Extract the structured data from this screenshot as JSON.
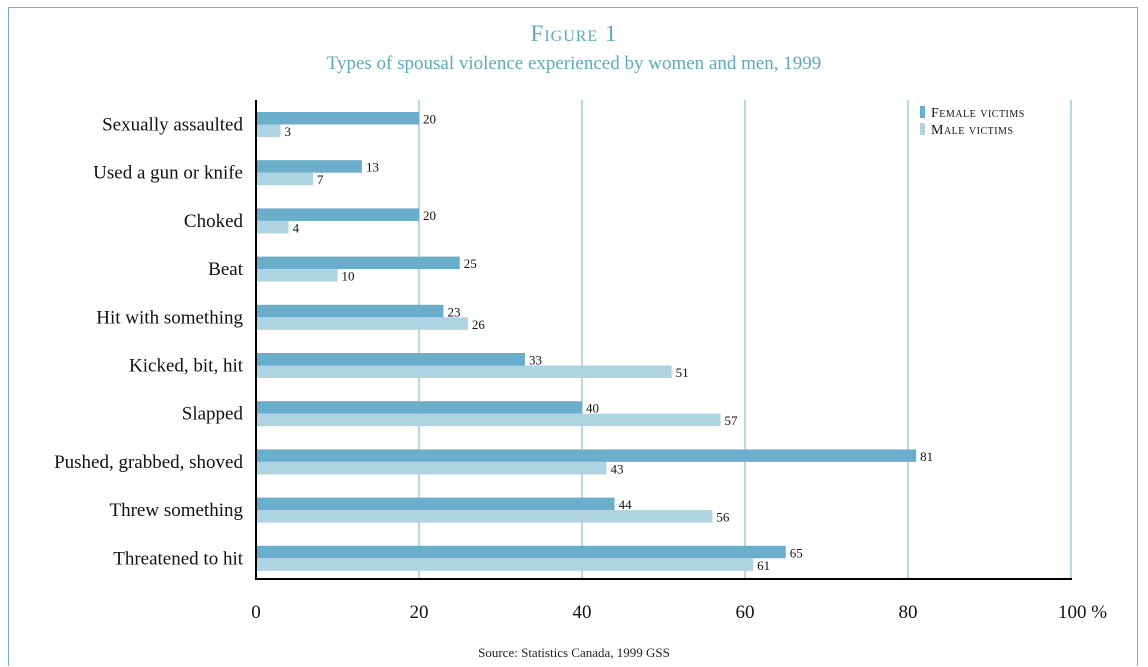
{
  "figure_label": "Figure 1",
  "subtitle": "Types of spousal violence experienced by women and men, 1999",
  "source": "Source: Statistics Canada, 1999 GSS",
  "chart_data": {
    "type": "bar",
    "orientation": "horizontal",
    "title": "Figure 1",
    "subtitle": "Types of spousal violence experienced by women and men, 1999",
    "categories": [
      "Sexually assaulted",
      "Used a gun or knife",
      "Choked",
      "Beat",
      "Hit with something",
      "Kicked, bit, hit",
      "Slapped",
      "Pushed, grabbed, shoved",
      "Threw something",
      "Threatened to hit"
    ],
    "series": [
      {
        "name": "Female victims",
        "color": "#6aaecb",
        "values": [
          20,
          13,
          20,
          25,
          23,
          33,
          40,
          81,
          44,
          65
        ]
      },
      {
        "name": "Male victims",
        "color": "#aed3e2",
        "values": [
          3,
          7,
          4,
          10,
          26,
          51,
          57,
          43,
          56,
          61
        ]
      }
    ],
    "xlim": [
      0,
      100
    ],
    "xticks": [
      "0",
      "20",
      "40",
      "60",
      "80",
      "100 %"
    ],
    "xtick_values": [
      0,
      20,
      40,
      60,
      80,
      100
    ],
    "grid": true,
    "grid_color": "#6fb3c6",
    "legend_position": "top-right"
  }
}
